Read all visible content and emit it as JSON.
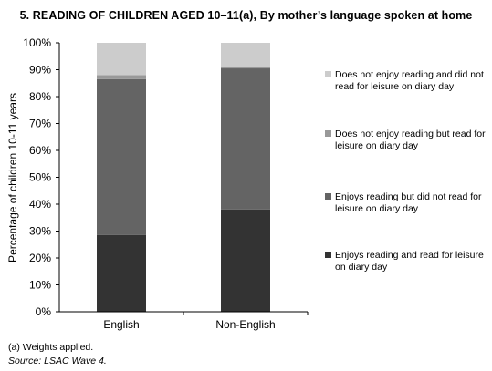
{
  "title": "5.   READING OF CHILDREN AGED 10–11(a), By mother’s language spoken at home",
  "footnote": "(a) Weights applied.",
  "source": "Source: LSAC Wave 4.",
  "chart_data": {
    "type": "bar",
    "stacked": true,
    "normalized": true,
    "categories": [
      "English",
      "Non-English"
    ],
    "ylabel": "Percentage of children 10-11 years",
    "xlabel": "",
    "ylim": [
      0,
      100
    ],
    "yticks": [
      "0%",
      "10%",
      "20%",
      "30%",
      "40%",
      "50%",
      "60%",
      "70%",
      "80%",
      "90%",
      "100%"
    ],
    "grid": false,
    "legend_position": "right",
    "series": [
      {
        "name": "Enjoys reading and read for leisure on diary day",
        "values": [
          28.5,
          38
        ],
        "color": "#333333"
      },
      {
        "name": "Enjoys reading but did not read for leisure on diary day",
        "values": [
          58,
          52.5
        ],
        "color": "#646464"
      },
      {
        "name": "Does not enjoy reading but read for leisure on diary day",
        "values": [
          1.5,
          0.5
        ],
        "color": "#999999"
      },
      {
        "name": "Does not enjoy reading and did not read for leisure on diary day",
        "values": [
          12,
          9
        ],
        "color": "#cccccc"
      }
    ]
  }
}
